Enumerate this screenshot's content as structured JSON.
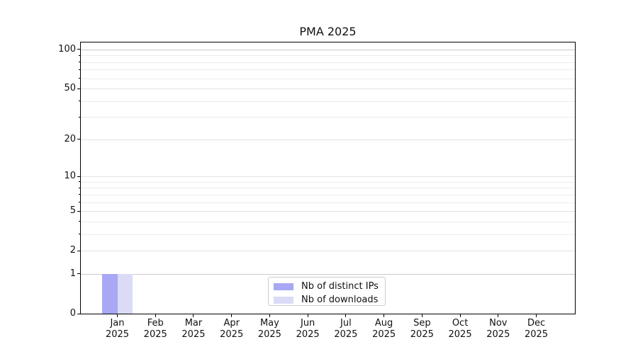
{
  "chart_data": {
    "type": "bar",
    "title": "PMA 2025",
    "categories": [
      "Jan 2025",
      "Feb 2025",
      "Mar 2025",
      "Apr 2025",
      "May 2025",
      "Jun 2025",
      "Jul 2025",
      "Aug 2025",
      "Sep 2025",
      "Oct 2025",
      "Nov 2025",
      "Dec 2025"
    ],
    "series": [
      {
        "name": "Nb of distinct IPs",
        "color": "#a8a8f5",
        "values": [
          1,
          0,
          0,
          0,
          0,
          0,
          0,
          0,
          0,
          0,
          0,
          0
        ]
      },
      {
        "name": "Nb of downloads",
        "color": "#dbdbf8",
        "values": [
          1,
          0,
          0,
          0,
          0,
          0,
          0,
          0,
          0,
          0,
          0,
          0
        ]
      }
    ],
    "xlabel": "",
    "ylabel": "",
    "yscale": "log1p",
    "ylim": [
      0,
      113
    ],
    "y_major_ticks": [
      0,
      1,
      2,
      5,
      10,
      20,
      50,
      100
    ],
    "y_emphasized_gridlines": [
      1,
      100
    ],
    "y_minor_ticks": [
      3,
      4,
      6,
      7,
      8,
      9,
      30,
      40,
      60,
      70,
      80,
      90
    ],
    "grid": true,
    "legend_position": "lower center"
  },
  "colors": {
    "grid_minor": "#ececec",
    "grid_major": "#e2e2e2",
    "grid_emphasized": "#c9c9c9",
    "spine": "#000000",
    "text": "#111111"
  }
}
